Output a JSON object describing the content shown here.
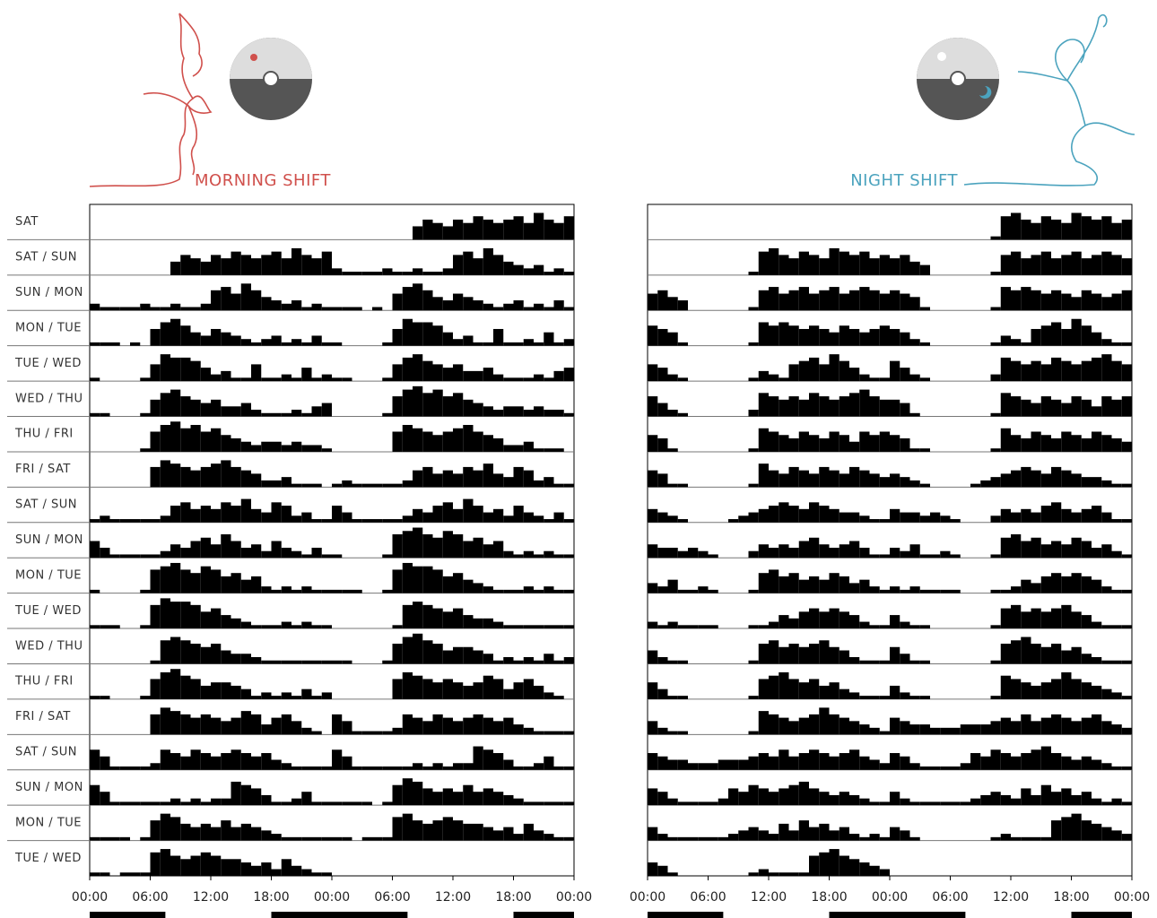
{
  "chart_data": [
    {
      "type": "actogram",
      "title": "MORNING SHIFT",
      "color": "#d0504c",
      "bar_color": "#000000",
      "row_labels": [
        "SAT",
        "SAT / SUN",
        "SUN / MON",
        "MON / TUE",
        "TUE / WED",
        "WED / THU",
        "THU / FRI",
        "FRI / SAT",
        "SAT / SUN",
        "SUN / MON",
        "MON / TUE",
        "TUE / WED",
        "WED / THU",
        "THU / FRI",
        "FRI / SAT",
        "SAT / SUN",
        "SUN / MON",
        "MON / TUE",
        "TUE / WED"
      ],
      "days": [
        [
          0,
          0,
          0,
          0,
          0,
          0,
          0,
          0,
          4,
          6,
          5,
          4,
          6,
          5,
          7,
          6,
          5,
          6,
          7,
          5,
          8,
          6,
          5,
          7
        ],
        [
          2,
          1,
          1,
          1,
          1,
          2,
          1,
          1,
          2,
          1,
          1,
          2,
          6,
          7,
          5,
          8,
          6,
          4,
          3,
          2,
          3,
          1,
          2,
          1
        ],
        [
          1,
          1,
          1,
          0,
          1,
          0,
          5,
          7,
          8,
          6,
          4,
          3,
          5,
          4,
          3,
          2,
          1,
          2,
          3,
          1,
          2,
          1,
          3,
          1
        ],
        [
          1,
          0,
          0,
          0,
          0,
          1,
          5,
          8,
          7,
          7,
          6,
          4,
          2,
          3,
          1,
          1,
          5,
          1,
          1,
          2,
          1,
          4,
          1,
          2
        ],
        [
          1,
          1,
          0,
          0,
          0,
          1,
          5,
          7,
          8,
          6,
          5,
          4,
          5,
          3,
          3,
          4,
          2,
          1,
          1,
          1,
          2,
          1,
          3,
          4
        ],
        [
          0,
          0,
          0,
          0,
          0,
          1,
          6,
          8,
          9,
          7,
          8,
          6,
          7,
          5,
          4,
          3,
          2,
          3,
          3,
          2,
          3,
          2,
          2,
          1
        ],
        [
          0,
          0,
          0,
          0,
          0,
          0,
          6,
          8,
          7,
          6,
          5,
          6,
          7,
          8,
          6,
          5,
          4,
          2,
          2,
          3,
          1,
          1,
          1,
          0
        ],
        [
          1,
          2,
          1,
          1,
          1,
          1,
          1,
          2,
          5,
          6,
          4,
          5,
          4,
          6,
          5,
          7,
          4,
          3,
          6,
          5,
          2,
          3,
          1,
          1
        ],
        [
          5,
          3,
          1,
          1,
          1,
          1,
          1,
          2,
          4,
          3,
          5,
          6,
          4,
          7,
          5,
          3,
          4,
          2,
          5,
          3,
          2,
          1,
          3,
          1
        ],
        [
          1,
          0,
          0,
          0,
          0,
          1,
          7,
          8,
          9,
          7,
          6,
          8,
          7,
          5,
          6,
          4,
          5,
          2,
          1,
          2,
          1,
          2,
          1,
          1
        ],
        [
          1,
          1,
          1,
          0,
          0,
          1,
          7,
          9,
          8,
          8,
          7,
          5,
          6,
          4,
          3,
          2,
          1,
          1,
          1,
          2,
          1,
          2,
          1,
          1
        ],
        [
          0,
          0,
          0,
          0,
          0,
          0,
          1,
          7,
          8,
          7,
          6,
          5,
          6,
          4,
          3,
          3,
          2,
          1,
          1,
          1,
          1,
          1,
          1,
          1
        ],
        [
          1,
          1,
          0,
          0,
          0,
          1,
          6,
          8,
          9,
          7,
          6,
          4,
          5,
          5,
          4,
          3,
          1,
          2,
          1,
          2,
          1,
          3,
          1,
          2
        ],
        [
          0,
          0,
          0,
          0,
          0,
          0,
          6,
          8,
          7,
          6,
          5,
          6,
          5,
          4,
          5,
          7,
          6,
          3,
          5,
          6,
          4,
          2,
          1,
          0
        ],
        [
          6,
          4,
          1,
          1,
          1,
          1,
          2,
          6,
          5,
          4,
          6,
          5,
          4,
          5,
          6,
          5,
          4,
          5,
          3,
          2,
          1,
          1,
          1,
          1
        ],
        [
          6,
          4,
          1,
          1,
          1,
          1,
          1,
          1,
          2,
          1,
          2,
          1,
          2,
          2,
          7,
          6,
          5,
          3,
          1,
          1,
          2,
          4,
          1,
          1
        ],
        [
          1,
          1,
          1,
          1,
          0,
          1,
          6,
          8,
          7,
          5,
          4,
          5,
          4,
          6,
          4,
          5,
          4,
          3,
          2,
          1,
          1,
          1,
          1,
          1
        ],
        [
          1,
          1,
          0,
          1,
          1,
          1,
          7,
          8,
          6,
          5,
          6,
          7,
          6,
          5,
          5,
          4,
          3,
          4,
          2,
          5,
          3,
          2,
          1,
          1
        ]
      ],
      "ylim": [
        0,
        10
      ],
      "xlim": [
        0,
        48
      ],
      "xticks": [
        {
          "value": 0,
          "label": "00:00"
        },
        {
          "value": 6,
          "label": "06:00"
        },
        {
          "value": 12,
          "label": "12:00"
        },
        {
          "value": 18,
          "label": "18:00"
        },
        {
          "value": 24,
          "label": "00:00"
        },
        {
          "value": 30,
          "label": "06:00"
        },
        {
          "value": 36,
          "label": "12:00"
        },
        {
          "value": 42,
          "label": "18:00"
        },
        {
          "value": 48,
          "label": "00:00"
        }
      ],
      "dark_periods": [
        [
          0,
          7.5
        ],
        [
          18,
          31.5
        ],
        [
          42,
          48
        ]
      ]
    },
    {
      "type": "actogram",
      "title": "NIGHT SHIFT",
      "color": "#4ba3be",
      "bar_color": "#000000",
      "days": [
        [
          0,
          0,
          0,
          0,
          0,
          0,
          0,
          0,
          0,
          0,
          1,
          7,
          8,
          6,
          5,
          7,
          6,
          5,
          8,
          7,
          6,
          7,
          5,
          6
        ],
        [
          5,
          6,
          4,
          3,
          0,
          0,
          0,
          0,
          0,
          0,
          1,
          6,
          7,
          5,
          6,
          7,
          5,
          6,
          7,
          5,
          6,
          7,
          6,
          5
        ],
        [
          6,
          5,
          4,
          1,
          0,
          0,
          0,
          0,
          0,
          0,
          1,
          7,
          6,
          7,
          6,
          5,
          6,
          5,
          4,
          6,
          5,
          4,
          5,
          6
        ],
        [
          5,
          4,
          2,
          1,
          0,
          0,
          0,
          0,
          0,
          0,
          1,
          3,
          2,
          1,
          5,
          6,
          7,
          5,
          8,
          6,
          4,
          2,
          1,
          1
        ],
        [
          6,
          4,
          2,
          1,
          0,
          0,
          0,
          0,
          0,
          0,
          2,
          7,
          6,
          5,
          6,
          5,
          7,
          6,
          5,
          6,
          7,
          8,
          6,
          5
        ],
        [
          5,
          4,
          1,
          0,
          0,
          0,
          0,
          0,
          0,
          0,
          1,
          7,
          6,
          5,
          4,
          6,
          5,
          4,
          6,
          5,
          3,
          6,
          5,
          6
        ],
        [
          5,
          4,
          1,
          1,
          0,
          0,
          0,
          0,
          0,
          0,
          1,
          7,
          5,
          4,
          6,
          5,
          4,
          6,
          5,
          4,
          6,
          5,
          4,
          3
        ],
        [
          4,
          3,
          2,
          1,
          0,
          0,
          0,
          0,
          1,
          2,
          3,
          4,
          5,
          6,
          5,
          4,
          6,
          5,
          4,
          3,
          3,
          2,
          1,
          1
        ],
        [
          4,
          3,
          3,
          2,
          3,
          2,
          1,
          0,
          0,
          0,
          2,
          4,
          3,
          4,
          3,
          5,
          6,
          4,
          3,
          4,
          5,
          3,
          1,
          1
        ],
        [
          3,
          2,
          4,
          1,
          1,
          2,
          1,
          0,
          0,
          0,
          1,
          6,
          7,
          5,
          6,
          4,
          5,
          4,
          6,
          5,
          3,
          4,
          2,
          1
        ],
        [
          2,
          1,
          2,
          1,
          1,
          1,
          1,
          0,
          0,
          0,
          1,
          1,
          2,
          4,
          3,
          5,
          6,
          5,
          6,
          5,
          4,
          2,
          1,
          1
        ],
        [
          4,
          2,
          1,
          1,
          0,
          0,
          0,
          0,
          0,
          0,
          1,
          6,
          7,
          5,
          6,
          5,
          6,
          7,
          5,
          4,
          2,
          1,
          1,
          1
        ],
        [
          5,
          3,
          1,
          1,
          0,
          0,
          0,
          0,
          0,
          0,
          1,
          6,
          7,
          8,
          6,
          5,
          6,
          4,
          5,
          3,
          2,
          1,
          1,
          1
        ],
        [
          4,
          2,
          1,
          1,
          0,
          0,
          0,
          0,
          0,
          0,
          1,
          7,
          6,
          5,
          4,
          5,
          6,
          8,
          6,
          5,
          4,
          3,
          2,
          1
        ],
        [
          5,
          4,
          3,
          3,
          2,
          2,
          2,
          3,
          3,
          3,
          4,
          5,
          4,
          6,
          4,
          5,
          6,
          5,
          4,
          5,
          6,
          4,
          3,
          2
        ],
        [
          5,
          4,
          2,
          1,
          1,
          1,
          1,
          2,
          5,
          4,
          6,
          5,
          4,
          5,
          6,
          7,
          5,
          4,
          3,
          4,
          3,
          2,
          1,
          1
        ],
        [
          4,
          2,
          1,
          1,
          1,
          1,
          1,
          1,
          2,
          3,
          4,
          3,
          2,
          5,
          3,
          6,
          4,
          5,
          3,
          4,
          2,
          1,
          2,
          1
        ],
        [
          4,
          3,
          1,
          0,
          0,
          0,
          0,
          0,
          0,
          0,
          1,
          2,
          1,
          1,
          1,
          1,
          6,
          7,
          8,
          6,
          5,
          4,
          3,
          2
        ]
      ],
      "ylim": [
        0,
        10
      ],
      "xlim": [
        0,
        48
      ],
      "xticks": [
        {
          "value": 0,
          "label": "00:00"
        },
        {
          "value": 6,
          "label": "06:00"
        },
        {
          "value": 12,
          "label": "12:00"
        },
        {
          "value": 18,
          "label": "18:00"
        },
        {
          "value": 24,
          "label": "00:00"
        },
        {
          "value": 30,
          "label": "06:00"
        },
        {
          "value": 36,
          "label": "12:00"
        },
        {
          "value": 42,
          "label": "18:00"
        },
        {
          "value": 48,
          "label": "00:00"
        }
      ],
      "dark_periods": [
        [
          0,
          7.5
        ],
        [
          18,
          31.5
        ],
        [
          42,
          48
        ]
      ]
    }
  ]
}
